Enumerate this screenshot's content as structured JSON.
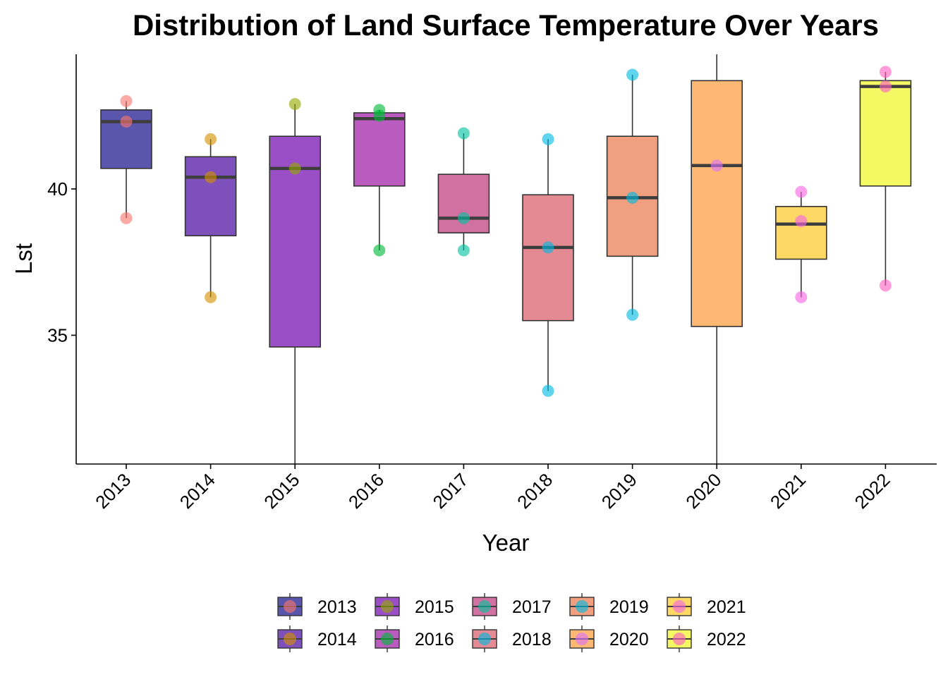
{
  "chart_data": {
    "type": "boxplot",
    "title": "Distribution of Land Surface Temperature Over Years",
    "xlabel": "Year",
    "ylabel": "Lst",
    "ylim": [
      30.6,
      44.6
    ],
    "yticks": [
      35,
      40
    ],
    "grid": false,
    "legend_position": "bottom",
    "categories": [
      "2013",
      "2014",
      "2015",
      "2016",
      "2017",
      "2018",
      "2019",
      "2020",
      "2021",
      "2022"
    ],
    "box_colors": [
      "#5a55ad",
      "#7d50bb",
      "#9b4fc6",
      "#b95bbf",
      "#d071a1",
      "#e48a92",
      "#f0a07f",
      "#fdb974",
      "#fdd865",
      "#f4f862"
    ],
    "point_colors": [
      "#f8766d",
      "#d39200",
      "#93aa00",
      "#00ba38",
      "#00c19f",
      "#00b9e3",
      "#00b9e3",
      "#db72fb",
      "#f564e3",
      "#ff61c3"
    ],
    "boxes": [
      {
        "year": "2013",
        "min": 39.0,
        "q1": 40.7,
        "median": 42.3,
        "q3": 42.7,
        "max": 43.0,
        "points": [
          43.0,
          42.3,
          39.0
        ]
      },
      {
        "year": "2014",
        "min": 36.3,
        "q1": 38.4,
        "median": 40.4,
        "q3": 41.1,
        "max": 41.7,
        "points": [
          41.7,
          40.4,
          36.3
        ]
      },
      {
        "year": "2015",
        "min": 30.6,
        "q1": 34.6,
        "median": 40.7,
        "q3": 41.8,
        "max": 42.9,
        "points": [
          42.9,
          40.7
        ]
      },
      {
        "year": "2016",
        "min": 37.9,
        "q1": 40.1,
        "median": 42.4,
        "q3": 42.6,
        "max": 42.7,
        "points": [
          42.7,
          42.5,
          37.9
        ]
      },
      {
        "year": "2017",
        "min": 37.9,
        "q1": 38.5,
        "median": 39.0,
        "q3": 40.5,
        "max": 41.9,
        "points": [
          41.9,
          39.0,
          37.9
        ]
      },
      {
        "year": "2018",
        "min": 33.1,
        "q1": 35.5,
        "median": 38.0,
        "q3": 39.8,
        "max": 41.7,
        "points": [
          41.7,
          38.0,
          33.1
        ]
      },
      {
        "year": "2019",
        "min": 35.7,
        "q1": 37.7,
        "median": 39.7,
        "q3": 41.8,
        "max": 43.9,
        "points": [
          43.9,
          39.7,
          35.7
        ]
      },
      {
        "year": "2020",
        "min": 30.6,
        "q1": 35.3,
        "median": 40.8,
        "q3": 43.7,
        "max": 44.6,
        "points": [
          40.8
        ]
      },
      {
        "year": "2021",
        "min": 36.3,
        "q1": 37.6,
        "median": 38.8,
        "q3": 39.4,
        "max": 39.9,
        "points": [
          39.9,
          38.9,
          36.3
        ]
      },
      {
        "year": "2022",
        "min": 36.7,
        "q1": 40.1,
        "median": 43.5,
        "q3": 43.7,
        "max": 44.0,
        "points": [
          44.0,
          43.5,
          36.7
        ]
      }
    ]
  }
}
